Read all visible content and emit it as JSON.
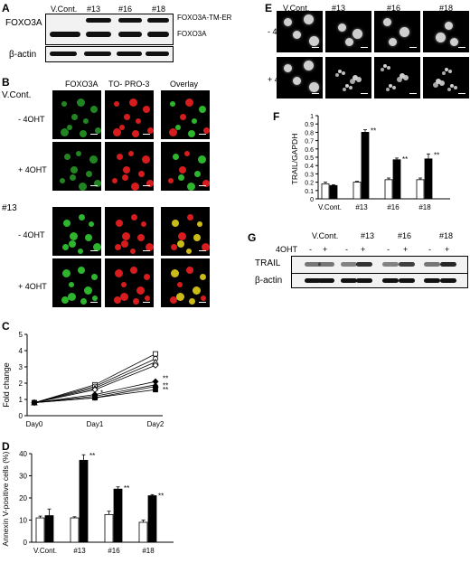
{
  "panel_a": {
    "label": "A",
    "protein_label": "FOXO3A",
    "lanes": [
      "V.Cont.",
      "#13",
      "#16",
      "#18"
    ],
    "band_labels": [
      "FOXO3A-TM-ER",
      "FOXO3A"
    ],
    "loading_label": "β-actin"
  },
  "panel_b": {
    "label": "B",
    "columns": [
      "FOXO3A",
      "TO- PRO-3",
      "Overlay"
    ],
    "groups": [
      {
        "name": "V.Cont.",
        "rows": [
          "- 4OHT",
          "+ 4OHT"
        ]
      },
      {
        "name": "#13",
        "rows": [
          "- 4OHT",
          "+ 4OHT"
        ]
      }
    ],
    "colors": {
      "foxo": "#2fbf2f",
      "topro": "#e11d1d",
      "overlay_mix": "#d6c51a"
    }
  },
  "panel_c": {
    "label": "C",
    "chart_data": {
      "type": "line",
      "ylabel": "Fold change",
      "x": [
        "Day0",
        "Day1",
        "Day2"
      ],
      "ylim": [
        0,
        5
      ],
      "yticks": [
        0,
        1,
        2,
        3,
        4,
        5
      ],
      "series": [
        {
          "marker": "open-square",
          "values": [
            0.8,
            1.9,
            3.8
          ]
        },
        {
          "marker": "open-circle",
          "values": [
            0.8,
            1.8,
            3.5
          ]
        },
        {
          "marker": "open-triangle",
          "values": [
            0.8,
            1.7,
            3.3
          ]
        },
        {
          "marker": "open-diamond",
          "values": [
            0.8,
            1.6,
            3.1
          ]
        },
        {
          "marker": "filled-diamond",
          "values": [
            0.8,
            1.3,
            2.1
          ]
        },
        {
          "marker": "filled-triangle",
          "values": [
            0.8,
            1.2,
            1.9
          ]
        },
        {
          "marker": "filled-circle",
          "values": [
            0.8,
            1.1,
            1.8
          ]
        },
        {
          "marker": "filled-square",
          "values": [
            0.8,
            1.1,
            1.6
          ]
        }
      ],
      "annotations": [
        "**",
        "**",
        "*",
        "**"
      ]
    }
  },
  "panel_d": {
    "label": "D",
    "chart_data": {
      "type": "bar",
      "ylabel": "Annexin V-positive cells (%)",
      "categories": [
        "V.Cont.",
        "#13",
        "#16",
        "#18"
      ],
      "ylim": [
        0,
        40
      ],
      "yticks": [
        0,
        10,
        20,
        30,
        40
      ],
      "series": [
        {
          "fill": "open",
          "values": [
            11,
            11,
            12.5,
            9
          ],
          "errors": [
            0.8,
            0.5,
            1.5,
            1
          ]
        },
        {
          "fill": "filled",
          "values": [
            12,
            37,
            24,
            21
          ],
          "errors": [
            3,
            2.5,
            1,
            0.5
          ]
        }
      ],
      "annotations": [
        "",
        "**",
        "**",
        "**"
      ]
    }
  },
  "panel_e": {
    "label": "E",
    "lanes": [
      "V.Cont.",
      "#13",
      "#16",
      "#18"
    ],
    "rows": [
      "- 4OHT",
      "+ 4OHT"
    ]
  },
  "panel_f": {
    "label": "F",
    "chart_data": {
      "type": "bar",
      "ylabel": "TRAIL/GAPDH",
      "categories": [
        "V.Cont.",
        "#13",
        "#16",
        "#18"
      ],
      "ylim": [
        0,
        1
      ],
      "yticks": [
        "0",
        "0.1",
        "0.2",
        "0.3",
        "0.4",
        "0.5",
        "0.6",
        "0.7",
        "0.8",
        "0.9",
        "1"
      ],
      "series": [
        {
          "fill": "open",
          "values": [
            0.18,
            0.2,
            0.23,
            0.23
          ],
          "errors": [
            0.02,
            0.01,
            0.02,
            0.02
          ]
        },
        {
          "fill": "filled",
          "values": [
            0.16,
            0.8,
            0.47,
            0.48
          ],
          "errors": [
            0.01,
            0.03,
            0.02,
            0.06
          ]
        }
      ],
      "annotations": [
        "",
        "**",
        "**",
        "**"
      ]
    }
  },
  "panel_g": {
    "label": "G",
    "lanes": [
      "V.Cont.",
      "#13",
      "#16",
      "#18"
    ],
    "treatment_label": "4OHT",
    "signs": [
      "-",
      "+",
      "-",
      "+",
      "-",
      "+",
      "-",
      "+"
    ],
    "blots": [
      "TRAIL",
      "β-actin"
    ]
  }
}
